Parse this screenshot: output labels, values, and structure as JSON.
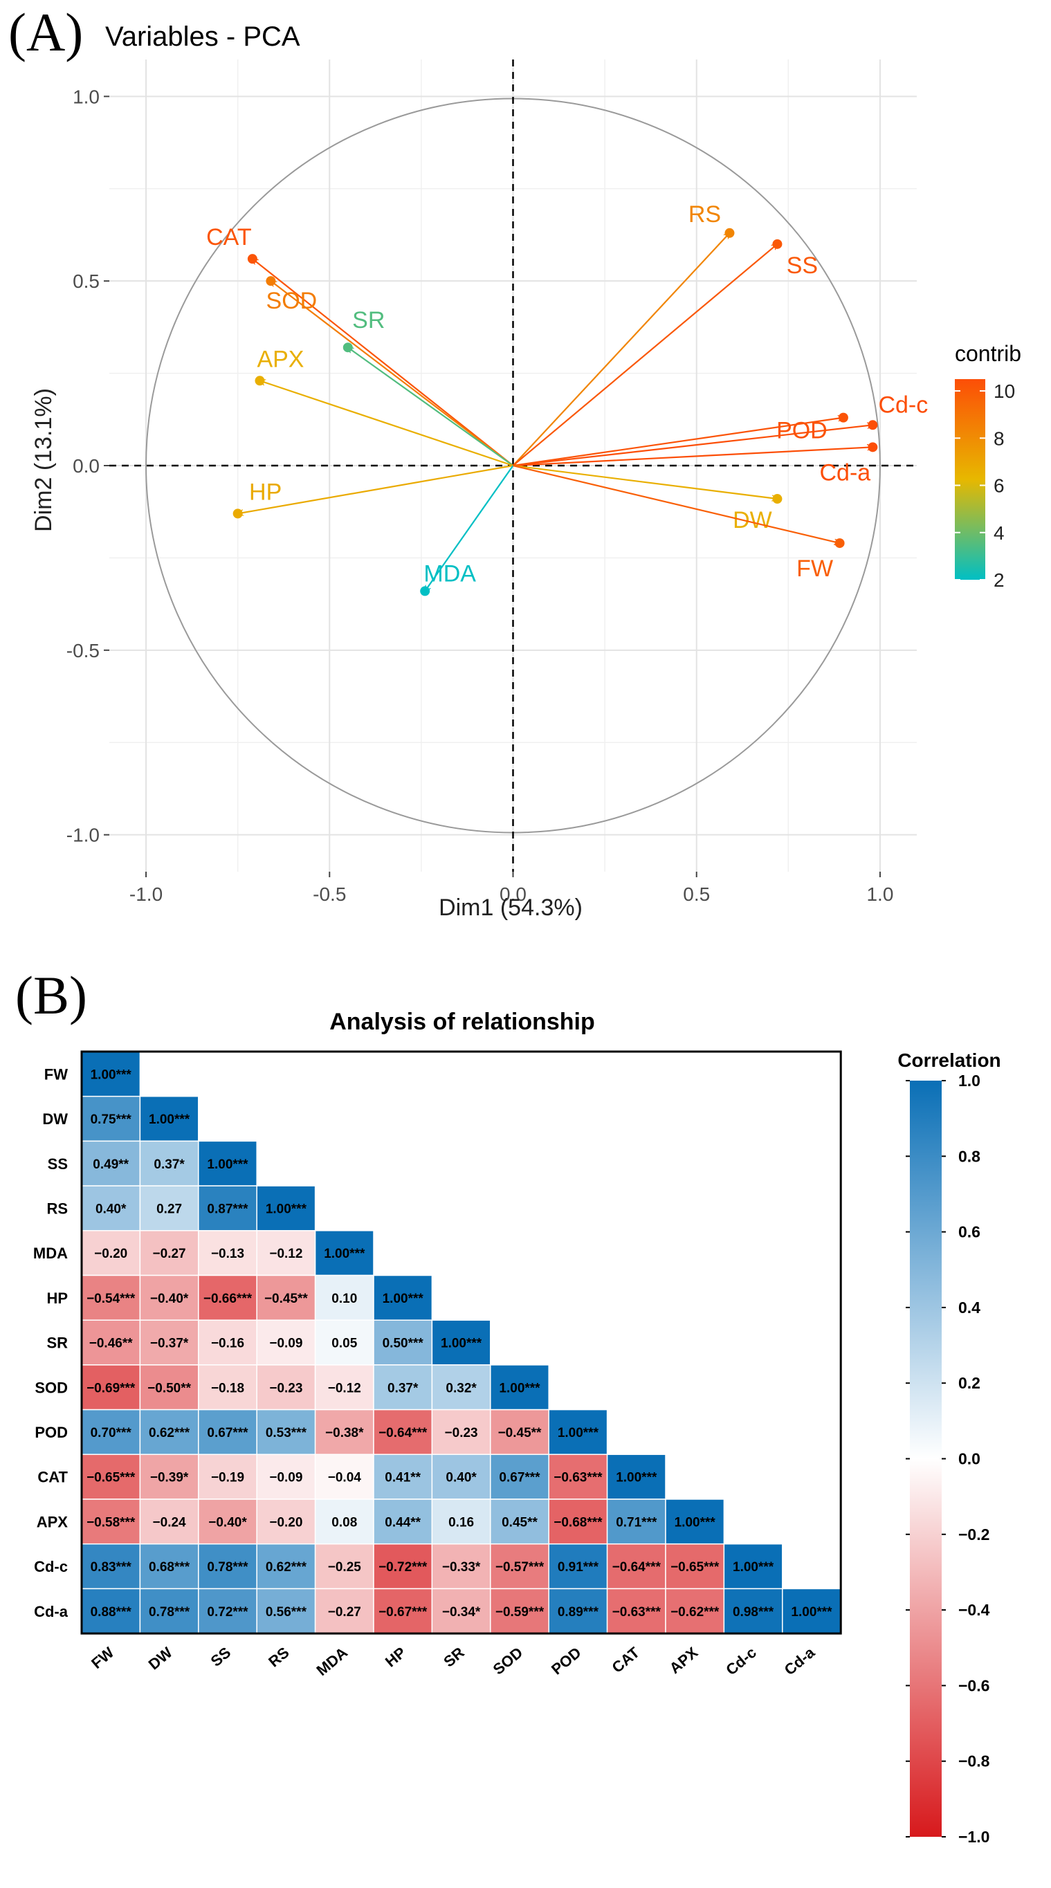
{
  "panelA": {
    "label": "(A)"
  },
  "panelB": {
    "label": "(B)"
  },
  "colors": {
    "contrib_low": "#00BFC4",
    "contrib_mid": "#E7B800",
    "contrib_high": "#FC4E07",
    "corr_neg": "#D7191C",
    "corr_zero": "#FFFFFF",
    "corr_pos": "#0A6FB6"
  },
  "chart_data": [
    {
      "type": "scatter",
      "subtype": "pca_variable_arrows",
      "title": "Variables - PCA",
      "xlabel": "Dim1 (54.3%)",
      "ylabel": "Dim2 (13.1%)",
      "xlim": [
        -1.1,
        1.1
      ],
      "ylim": [
        -1.1,
        1.1
      ],
      "xticks": [
        -1.0,
        -0.5,
        0.0,
        0.5,
        1.0
      ],
      "yticks": [
        -1.0,
        -0.5,
        0.0,
        0.5,
        1.0
      ],
      "xtick_labels": [
        "-1.0",
        "-0.5",
        "0.0",
        "0.5",
        "1.0"
      ],
      "ytick_labels": [
        "-1.0",
        "-0.5",
        "0.0",
        "0.5",
        "1.0"
      ],
      "grid": true,
      "legend": {
        "title": "contrib",
        "position": "right",
        "range": [
          2,
          10.5
        ],
        "ticks": [
          2,
          4,
          6,
          8,
          10
        ],
        "tick_labels": [
          "2",
          "4",
          "6",
          "8",
          "10"
        ]
      },
      "points": [
        {
          "name": "CAT",
          "x": -0.71,
          "y": 0.56,
          "contrib": 10.2
        },
        {
          "name": "SOD",
          "x": -0.66,
          "y": 0.5,
          "contrib": 8.6
        },
        {
          "name": "SR",
          "x": -0.45,
          "y": 0.32,
          "contrib": 3.5
        },
        {
          "name": "APX",
          "x": -0.69,
          "y": 0.23,
          "contrib": 6.6
        },
        {
          "name": "HP",
          "x": -0.75,
          "y": -0.13,
          "contrib": 6.8
        },
        {
          "name": "MDA",
          "x": -0.24,
          "y": -0.34,
          "contrib": 2.0
        },
        {
          "name": "RS",
          "x": 0.59,
          "y": 0.63,
          "contrib": 8.3
        },
        {
          "name": "SS",
          "x": 0.72,
          "y": 0.6,
          "contrib": 10.1
        },
        {
          "name": "Cd-c",
          "x": 0.98,
          "y": 0.11,
          "contrib": 10.7
        },
        {
          "name": "POD",
          "x": 0.9,
          "y": 0.13,
          "contrib": 10.3
        },
        {
          "name": "Cd-a",
          "x": 0.98,
          "y": 0.05,
          "contrib": 10.6
        },
        {
          "name": "DW",
          "x": 0.72,
          "y": -0.09,
          "contrib": 6.6
        },
        {
          "name": "FW",
          "x": 0.89,
          "y": -0.21,
          "contrib": 9.8
        }
      ]
    },
    {
      "type": "heatmap",
      "subtype": "lower_triangle_correlation",
      "title": "Analysis of relationship",
      "variables": [
        "FW",
        "DW",
        "SS",
        "RS",
        "MDA",
        "HP",
        "SR",
        "SOD",
        "POD",
        "CAT",
        "APX",
        "Cd-c",
        "Cd-a"
      ],
      "legend": {
        "title": "Correlation",
        "position": "right",
        "range": [
          -1.0,
          1.0
        ],
        "ticks": [
          1.0,
          0.8,
          0.6,
          0.4,
          0.2,
          0.0,
          -0.2,
          -0.4,
          -0.6,
          -0.8,
          -1.0
        ],
        "tick_labels": [
          "1.0",
          "0.8",
          "0.6",
          "0.4",
          "0.2",
          "0.0",
          "−0.2",
          "−0.4",
          "−0.6",
          "−0.8",
          "−1.0"
        ]
      },
      "rows": [
        {
          "variable": "FW",
          "cells": [
            {
              "value": 1.0,
              "label": "1.00***"
            }
          ]
        },
        {
          "variable": "DW",
          "cells": [
            {
              "value": 0.75,
              "label": "0.75***"
            },
            {
              "value": 1.0,
              "label": "1.00***"
            }
          ]
        },
        {
          "variable": "SS",
          "cells": [
            {
              "value": 0.49,
              "label": "0.49**"
            },
            {
              "value": 0.37,
              "label": "0.37*"
            },
            {
              "value": 1.0,
              "label": "1.00***"
            }
          ]
        },
        {
          "variable": "RS",
          "cells": [
            {
              "value": 0.4,
              "label": "0.40*"
            },
            {
              "value": 0.27,
              "label": "0.27"
            },
            {
              "value": 0.87,
              "label": "0.87***"
            },
            {
              "value": 1.0,
              "label": "1.00***"
            }
          ]
        },
        {
          "variable": "MDA",
          "cells": [
            {
              "value": -0.2,
              "label": "−0.20"
            },
            {
              "value": -0.27,
              "label": "−0.27"
            },
            {
              "value": -0.13,
              "label": "−0.13"
            },
            {
              "value": -0.12,
              "label": "−0.12"
            },
            {
              "value": 1.0,
              "label": "1.00***"
            }
          ]
        },
        {
          "variable": "HP",
          "cells": [
            {
              "value": -0.54,
              "label": "−0.54***"
            },
            {
              "value": -0.4,
              "label": "−0.40*"
            },
            {
              "value": -0.66,
              "label": "−0.66***"
            },
            {
              "value": -0.45,
              "label": "−0.45**"
            },
            {
              "value": 0.1,
              "label": "0.10"
            },
            {
              "value": 1.0,
              "label": "1.00***"
            }
          ]
        },
        {
          "variable": "SR",
          "cells": [
            {
              "value": -0.46,
              "label": "−0.46**"
            },
            {
              "value": -0.37,
              "label": "−0.37*"
            },
            {
              "value": -0.16,
              "label": "−0.16"
            },
            {
              "value": -0.09,
              "label": "−0.09"
            },
            {
              "value": 0.05,
              "label": "0.05"
            },
            {
              "value": 0.5,
              "label": "0.50***"
            },
            {
              "value": 1.0,
              "label": "1.00***"
            }
          ]
        },
        {
          "variable": "SOD",
          "cells": [
            {
              "value": -0.69,
              "label": "−0.69***"
            },
            {
              "value": -0.5,
              "label": "−0.50**"
            },
            {
              "value": -0.18,
              "label": "−0.18"
            },
            {
              "value": -0.23,
              "label": "−0.23"
            },
            {
              "value": -0.12,
              "label": "−0.12"
            },
            {
              "value": 0.37,
              "label": "0.37*"
            },
            {
              "value": 0.32,
              "label": "0.32*"
            },
            {
              "value": 1.0,
              "label": "1.00***"
            }
          ]
        },
        {
          "variable": "POD",
          "cells": [
            {
              "value": 0.7,
              "label": "0.70***"
            },
            {
              "value": 0.62,
              "label": "0.62***"
            },
            {
              "value": 0.67,
              "label": "0.67***"
            },
            {
              "value": 0.53,
              "label": "0.53***"
            },
            {
              "value": -0.38,
              "label": "−0.38*"
            },
            {
              "value": -0.64,
              "label": "−0.64***"
            },
            {
              "value": -0.23,
              "label": "−0.23"
            },
            {
              "value": -0.45,
              "label": "−0.45**"
            },
            {
              "value": 1.0,
              "label": "1.00***"
            }
          ]
        },
        {
          "variable": "CAT",
          "cells": [
            {
              "value": -0.65,
              "label": "−0.65***"
            },
            {
              "value": -0.39,
              "label": "−0.39*"
            },
            {
              "value": -0.19,
              "label": "−0.19"
            },
            {
              "value": -0.09,
              "label": "−0.09"
            },
            {
              "value": -0.04,
              "label": "−0.04"
            },
            {
              "value": 0.41,
              "label": "0.41**"
            },
            {
              "value": 0.4,
              "label": "0.40*"
            },
            {
              "value": 0.67,
              "label": "0.67***"
            },
            {
              "value": -0.63,
              "label": "−0.63***"
            },
            {
              "value": 1.0,
              "label": "1.00***"
            }
          ]
        },
        {
          "variable": "APX",
          "cells": [
            {
              "value": -0.58,
              "label": "−0.58***"
            },
            {
              "value": -0.24,
              "label": "−0.24"
            },
            {
              "value": -0.4,
              "label": "−0.40*"
            },
            {
              "value": -0.2,
              "label": "−0.20"
            },
            {
              "value": 0.08,
              "label": "0.08"
            },
            {
              "value": 0.44,
              "label": "0.44**"
            },
            {
              "value": 0.16,
              "label": "0.16"
            },
            {
              "value": 0.45,
              "label": "0.45**"
            },
            {
              "value": -0.68,
              "label": "−0.68***"
            },
            {
              "value": 0.71,
              "label": "0.71***"
            },
            {
              "value": 1.0,
              "label": "1.00***"
            }
          ]
        },
        {
          "variable": "Cd-c",
          "cells": [
            {
              "value": 0.83,
              "label": "0.83***"
            },
            {
              "value": 0.68,
              "label": "0.68***"
            },
            {
              "value": 0.78,
              "label": "0.78***"
            },
            {
              "value": 0.62,
              "label": "0.62***"
            },
            {
              "value": -0.25,
              "label": "−0.25"
            },
            {
              "value": -0.72,
              "label": "−0.72***"
            },
            {
              "value": -0.33,
              "label": "−0.33*"
            },
            {
              "value": -0.57,
              "label": "−0.57***"
            },
            {
              "value": 0.91,
              "label": "0.91***"
            },
            {
              "value": -0.64,
              "label": "−0.64***"
            },
            {
              "value": -0.65,
              "label": "−0.65***"
            },
            {
              "value": 1.0,
              "label": "1.00***"
            }
          ]
        },
        {
          "variable": "Cd-a",
          "cells": [
            {
              "value": 0.88,
              "label": "0.88***"
            },
            {
              "value": 0.78,
              "label": "0.78***"
            },
            {
              "value": 0.72,
              "label": "0.72***"
            },
            {
              "value": 0.56,
              "label": "0.56***"
            },
            {
              "value": -0.27,
              "label": "−0.27"
            },
            {
              "value": -0.67,
              "label": "−0.67***"
            },
            {
              "value": -0.34,
              "label": "−0.34*"
            },
            {
              "value": -0.59,
              "label": "−0.59***"
            },
            {
              "value": 0.89,
              "label": "0.89***"
            },
            {
              "value": -0.63,
              "label": "−0.63***"
            },
            {
              "value": -0.62,
              "label": "−0.62***"
            },
            {
              "value": 0.98,
              "label": "0.98***"
            },
            {
              "value": 1.0,
              "label": "1.00***"
            }
          ]
        }
      ]
    }
  ]
}
